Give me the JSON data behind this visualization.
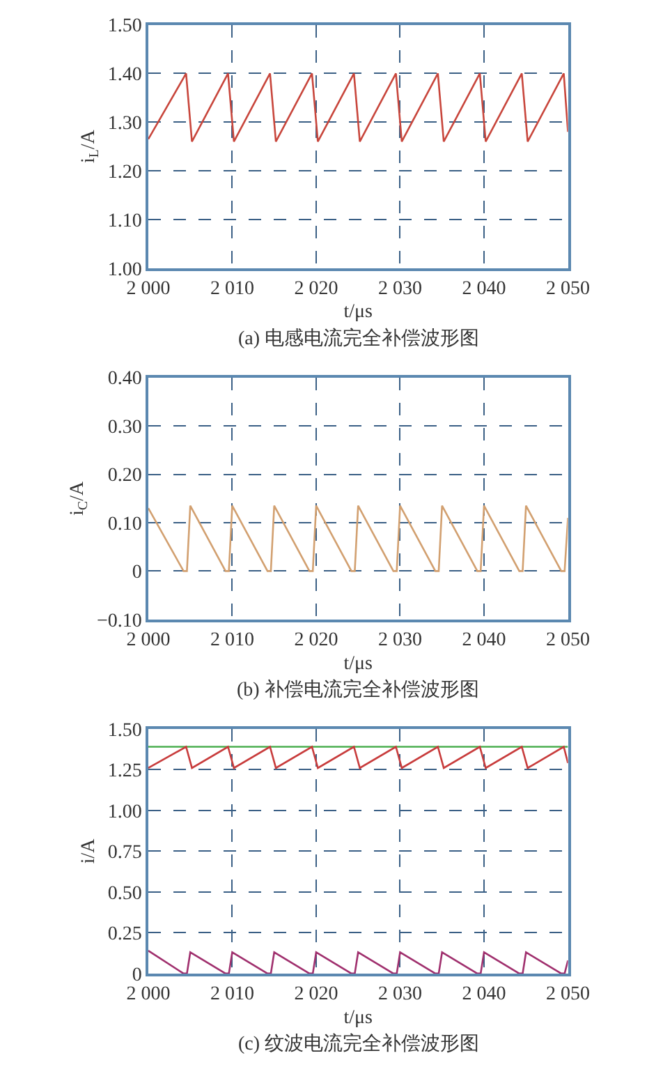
{
  "chart_data": [
    {
      "type": "line",
      "title": "(a) 电感电流完全补偿波形图",
      "xlabel": "t/μs",
      "ylabel": "i$_{L}$/A",
      "series": [
        {
          "color": "#c8463c",
          "x": [
            2000,
            2004.5,
            2005.2,
            2009.5,
            2010.2,
            2014.5,
            2015.2,
            2019.5,
            2020.2,
            2024.5,
            2025.2,
            2029.5,
            2030.2,
            2034.5,
            2035.2,
            2039.5,
            2040.2,
            2044.5,
            2045.2,
            2049.5,
            2050
          ],
          "values": [
            1.265,
            1.4,
            1.26,
            1.4,
            1.26,
            1.4,
            1.26,
            1.4,
            1.26,
            1.4,
            1.26,
            1.4,
            1.26,
            1.4,
            1.26,
            1.4,
            1.26,
            1.4,
            1.26,
            1.4,
            1.28
          ]
        }
      ],
      "xlim": [
        2000,
        2050
      ],
      "xticks": [
        {
          "value": 2000,
          "label": "2 000"
        },
        {
          "value": 2010,
          "label": "2 010"
        },
        {
          "value": 2020,
          "label": "2 020"
        },
        {
          "value": 2030,
          "label": "2 030"
        },
        {
          "value": 2040,
          "label": "2 040"
        },
        {
          "value": 2050,
          "label": "2 050"
        }
      ],
      "ylim": [
        1.0,
        1.5
      ],
      "yticks": [
        {
          "value": 1.0,
          "label": "1.00"
        },
        {
          "value": 1.1,
          "label": "1.10"
        },
        {
          "value": 1.2,
          "label": "1.20"
        },
        {
          "value": 1.3,
          "label": "1.30"
        },
        {
          "value": 1.4,
          "label": "1.40"
        },
        {
          "value": 1.5,
          "label": "1.50"
        }
      ],
      "grid": true,
      "marker": "none",
      "line_style": "solid"
    },
    {
      "type": "line",
      "title": "(b) 补偿电流完全补偿波形图",
      "xlabel": "t/μs",
      "ylabel": "i$_{C}$/A",
      "series": [
        {
          "color": "#d2a070",
          "x": [
            2000,
            2004.2,
            2004.6,
            2005,
            2009.2,
            2009.6,
            2010,
            2014.2,
            2014.6,
            2015,
            2019.2,
            2019.6,
            2020,
            2024.2,
            2024.6,
            2025,
            2029.2,
            2029.6,
            2030,
            2034.2,
            2034.6,
            2035,
            2039.2,
            2039.6,
            2040,
            2044.2,
            2044.6,
            2045,
            2049.2,
            2049.6,
            2050
          ],
          "values": [
            0.13,
            0,
            0,
            0.135,
            0,
            0,
            0.135,
            0,
            0,
            0.135,
            0,
            0,
            0.135,
            0,
            0,
            0.135,
            0,
            0,
            0.135,
            0,
            0,
            0.135,
            0,
            0,
            0.135,
            0,
            0,
            0.135,
            0,
            0,
            0.11
          ]
        }
      ],
      "xlim": [
        2000,
        2050
      ],
      "xticks": [
        {
          "value": 2000,
          "label": "2 000"
        },
        {
          "value": 2010,
          "label": "2 010"
        },
        {
          "value": 2020,
          "label": "2 020"
        },
        {
          "value": 2030,
          "label": "2 030"
        },
        {
          "value": 2040,
          "label": "2 040"
        },
        {
          "value": 2050,
          "label": "2 050"
        }
      ],
      "ylim": [
        -0.1,
        0.4
      ],
      "yticks": [
        {
          "value": -0.1,
          "label": "−0.10"
        },
        0,
        {
          "value": 0.1,
          "label": "0.10"
        },
        {
          "value": 0.2,
          "label": "0.20"
        },
        {
          "value": 0.3,
          "label": "0.30"
        },
        {
          "value": 0.4,
          "label": "0.40"
        }
      ],
      "grid": true,
      "marker": "none",
      "line_style": "solid"
    },
    {
      "type": "line",
      "title": "(c) 纹波电流完全补偿波形图",
      "xlabel": "t/μs",
      "ylabel": "i/A",
      "series": [
        {
          "color": "#4caf50",
          "x": [
            2000,
            2050
          ],
          "values": [
            1.39,
            1.39
          ]
        },
        {
          "color": "#c83c3c",
          "x": [
            2000,
            2004.5,
            2005.2,
            2009.5,
            2010.2,
            2014.5,
            2015.2,
            2019.5,
            2020.2,
            2024.5,
            2025.2,
            2029.5,
            2030.2,
            2034.5,
            2035.2,
            2039.5,
            2040.2,
            2044.5,
            2045.2,
            2049.5,
            2050
          ],
          "values": [
            1.26,
            1.39,
            1.26,
            1.39,
            1.26,
            1.39,
            1.26,
            1.39,
            1.26,
            1.39,
            1.26,
            1.39,
            1.26,
            1.39,
            1.26,
            1.39,
            1.26,
            1.39,
            1.26,
            1.39,
            1.29
          ]
        },
        {
          "color": "#a0306e",
          "x": [
            2000,
            2004.2,
            2004.6,
            2005,
            2009.2,
            2009.6,
            2010,
            2014.2,
            2014.6,
            2015,
            2019.2,
            2019.6,
            2020,
            2024.2,
            2024.6,
            2025,
            2029.2,
            2029.6,
            2030,
            2034.2,
            2034.6,
            2035,
            2039.2,
            2039.6,
            2040,
            2044.2,
            2044.6,
            2045,
            2049.2,
            2049.6,
            2050
          ],
          "values": [
            0.14,
            0,
            0,
            0.13,
            0,
            0,
            0.13,
            0,
            0,
            0.13,
            0,
            0,
            0.13,
            0,
            0,
            0.13,
            0,
            0,
            0.13,
            0,
            0,
            0.13,
            0,
            0,
            0.13,
            0,
            0,
            0.13,
            0,
            0,
            0.08
          ]
        }
      ],
      "xlim": [
        2000,
        2050
      ],
      "xticks": [
        {
          "value": 2000,
          "label": "2 000"
        },
        {
          "value": 2010,
          "label": "2 010"
        },
        {
          "value": 2020,
          "label": "2 020"
        },
        {
          "value": 2030,
          "label": "2 030"
        },
        {
          "value": 2040,
          "label": "2 040"
        },
        {
          "value": 2050,
          "label": "2 050"
        }
      ],
      "ylim": [
        0,
        1.5
      ],
      "yticks": [
        0,
        {
          "value": 0.25,
          "label": "0.25"
        },
        {
          "value": 0.5,
          "label": "0.50"
        },
        {
          "value": 0.75,
          "label": "0.75"
        },
        {
          "value": 1.0,
          "label": "1.00"
        },
        {
          "value": 1.25,
          "label": "1.25"
        },
        {
          "value": 1.5,
          "label": "1.50"
        }
      ],
      "grid": true,
      "marker": "none",
      "line_style": "solid"
    }
  ]
}
